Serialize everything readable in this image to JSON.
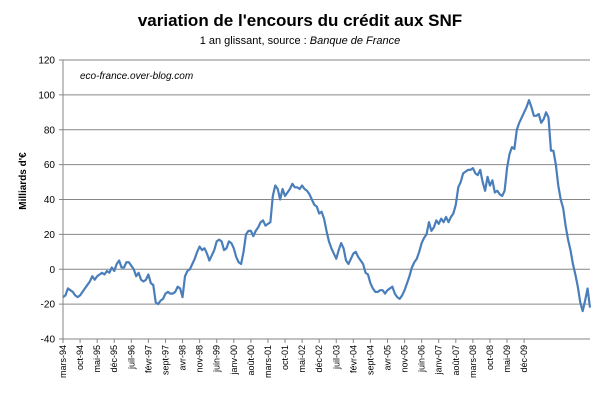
{
  "chart_data": {
    "type": "line",
    "title": "variation de l'encours du crédit aux SNF",
    "subtitle_prefix": "1 an glissant, source : ",
    "subtitle_source": "Banque de France",
    "ylabel": "Milliards d'€",
    "xlabel": "",
    "annotation": "eco-france.over-blog.com",
    "ylim": [
      -40,
      120
    ],
    "yticks": [
      -40,
      -20,
      0,
      20,
      40,
      60,
      80,
      100,
      120
    ],
    "grid": true,
    "legend": "none",
    "line_color": "#4a7ebb",
    "xtick_labels": [
      "mars-94",
      "oct-94",
      "mai-95",
      "déc-95",
      "juil-96",
      "févr-97",
      "sept-97",
      "avr-98",
      "nov-98",
      "juin-99",
      "janv-00",
      "août-00",
      "mars-01",
      "oct-01",
      "mai-02",
      "déc-02",
      "juil-03",
      "févr-04",
      "sept-04",
      "avr-05",
      "nov-05",
      "juin-06",
      "janv-07",
      "août-07",
      "mars-08",
      "oct-08",
      "mai-09",
      "déc-09"
    ],
    "series": [
      {
        "values": [
          -16,
          -15,
          -11,
          -12,
          -13,
          -15,
          -16,
          -15,
          -13,
          -11,
          -9,
          -7,
          -4,
          -6,
          -4,
          -3,
          -2,
          -3,
          -1,
          -2,
          1,
          -1,
          3,
          5,
          1,
          1,
          4,
          4,
          2,
          0,
          -4,
          -2,
          -6,
          -7,
          -6,
          -3,
          -8,
          -9,
          -19,
          -20,
          -18,
          -17,
          -14,
          -13,
          -14,
          -14,
          -13,
          -10,
          -11,
          -16,
          -4,
          -1,
          0,
          3,
          6,
          10,
          13,
          11,
          12,
          9,
          5,
          8,
          11,
          16,
          17,
          16,
          11,
          12,
          16,
          15,
          12,
          7,
          4,
          3,
          10,
          20,
          22,
          22,
          19,
          22,
          24,
          27,
          28,
          25,
          26,
          27,
          42,
          48,
          46,
          40,
          46,
          42,
          44,
          46,
          49,
          47,
          47,
          46,
          48,
          46,
          45,
          43,
          40,
          37,
          36,
          32,
          33,
          29,
          22,
          16,
          12,
          9,
          6,
          11,
          15,
          12,
          5,
          3,
          6,
          9,
          10,
          7,
          5,
          3,
          -2,
          -3,
          -8,
          -11,
          -13,
          -13,
          -12,
          -12,
          -14,
          -12,
          -11,
          -10,
          -14,
          -16,
          -17,
          -15,
          -12,
          -8,
          -4,
          1,
          4,
          6,
          10,
          15,
          18,
          20,
          27,
          22,
          24,
          28,
          26,
          29,
          27,
          30,
          27,
          30,
          32,
          37,
          47,
          50,
          55,
          56,
          57,
          57,
          58,
          55,
          54,
          57,
          50,
          45,
          53,
          48,
          51,
          44,
          45,
          43,
          42,
          45,
          58,
          66,
          70,
          69,
          80,
          84,
          87,
          90,
          93,
          97,
          93,
          88,
          88,
          89,
          84,
          86,
          90,
          87,
          68,
          68,
          60,
          48,
          40,
          35,
          25,
          17,
          11,
          3,
          -3,
          -10,
          -19,
          -24,
          -18,
          -11,
          -22
        ]
      }
    ]
  }
}
